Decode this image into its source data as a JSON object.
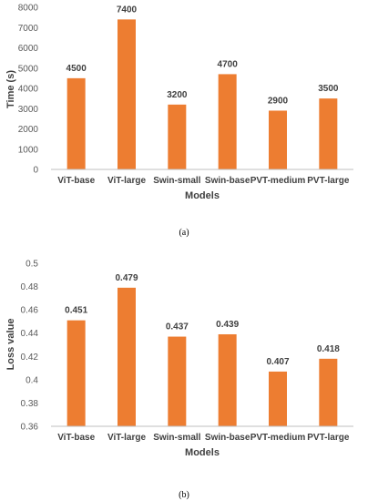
{
  "chart_data": [
    {
      "type": "bar",
      "panel_label": "(a)",
      "xlabel": "Models",
      "ylabel": "Time (s)",
      "categories": [
        "ViT-base",
        "ViT-large",
        "Swin-small",
        "Swin-base",
        "PVT-medium",
        "PVT-large"
      ],
      "values": [
        4500,
        7400,
        3200,
        4700,
        2900,
        3500
      ],
      "data_labels": [
        "4500",
        "7400",
        "3200",
        "4700",
        "2900",
        "3500"
      ],
      "ylim": [
        0,
        8000
      ],
      "yticks": [
        "0",
        "1000",
        "2000",
        "3000",
        "4000",
        "5000",
        "6000",
        "7000",
        "8000"
      ],
      "bar_color": "#ED7D31",
      "grid": false,
      "legend": "none"
    },
    {
      "type": "bar",
      "panel_label": "(b)",
      "xlabel": "Models",
      "ylabel": "Loss value",
      "categories": [
        "ViT-base",
        "ViT-large",
        "Swin-small",
        "Swin-base",
        "PVT-medium",
        "PVT-large"
      ],
      "values": [
        0.451,
        0.479,
        0.437,
        0.439,
        0.407,
        0.418
      ],
      "data_labels": [
        "0.451",
        "0.479",
        "0.437",
        "0.439",
        "0.407",
        "0.418"
      ],
      "ylim": [
        0.36,
        0.5
      ],
      "yticks": [
        "0.36",
        "0.38",
        "0.4",
        "0.42",
        "0.44",
        "0.46",
        "0.48",
        "0.5"
      ],
      "bar_color": "#ED7D31",
      "grid": false,
      "legend": "none"
    }
  ]
}
